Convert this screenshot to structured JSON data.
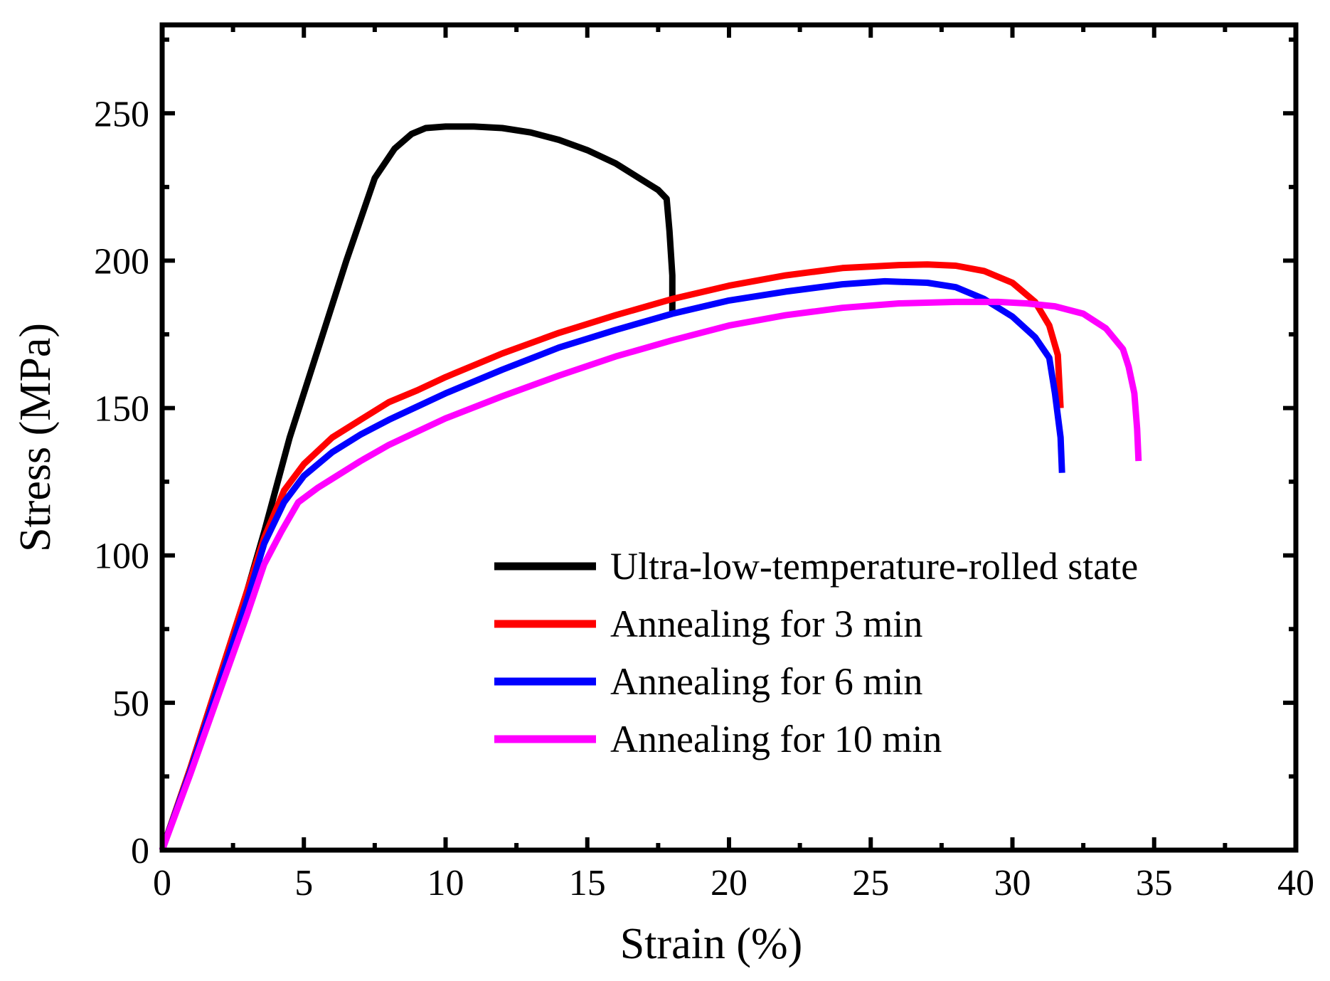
{
  "chart_data": {
    "type": "line",
    "xlabel": "Strain (%)",
    "ylabel": "Stress (MPa)",
    "xlim": [
      0,
      40
    ],
    "ylim": [
      0,
      280
    ],
    "xticks": [
      0,
      5,
      10,
      15,
      20,
      25,
      30,
      35,
      40
    ],
    "yticks": [
      0,
      50,
      100,
      150,
      200,
      250
    ],
    "grid": false,
    "legend_position": "lower-right",
    "series": [
      {
        "name": "Ultra-low-temperature-rolled state",
        "color": "#000000",
        "points": [
          [
            0,
            0
          ],
          [
            1,
            28
          ],
          [
            2,
            58
          ],
          [
            3,
            88
          ],
          [
            3.6,
            108
          ],
          [
            4.5,
            140
          ],
          [
            5.5,
            170
          ],
          [
            6.5,
            200
          ],
          [
            7.5,
            228
          ],
          [
            8.2,
            238
          ],
          [
            8.8,
            243
          ],
          [
            9.3,
            245
          ],
          [
            10,
            245.5
          ],
          [
            11,
            245.5
          ],
          [
            12,
            245
          ],
          [
            13,
            243.5
          ],
          [
            14,
            241
          ],
          [
            15,
            237.5
          ],
          [
            16,
            233
          ],
          [
            17,
            227
          ],
          [
            17.5,
            224
          ],
          [
            17.8,
            221
          ],
          [
            17.9,
            210
          ],
          [
            18,
            195
          ],
          [
            18,
            182
          ]
        ]
      },
      {
        "name": "Annealing for 3 min",
        "color": "#ff0000",
        "points": [
          [
            0,
            0
          ],
          [
            1,
            28
          ],
          [
            2,
            58
          ],
          [
            3,
            88
          ],
          [
            3.6,
            106
          ],
          [
            4.3,
            122
          ],
          [
            5,
            131
          ],
          [
            6,
            140
          ],
          [
            7,
            146
          ],
          [
            8,
            152
          ],
          [
            9,
            156
          ],
          [
            10,
            160.5
          ],
          [
            12,
            168.5
          ],
          [
            14,
            175.5
          ],
          [
            16,
            181.5
          ],
          [
            18,
            187
          ],
          [
            20,
            191.5
          ],
          [
            22,
            195
          ],
          [
            24,
            197.5
          ],
          [
            26,
            198.5
          ],
          [
            27,
            198.7
          ],
          [
            28,
            198.3
          ],
          [
            29,
            196.5
          ],
          [
            30,
            192.5
          ],
          [
            30.8,
            186
          ],
          [
            31.3,
            178
          ],
          [
            31.6,
            168
          ],
          [
            31.7,
            150
          ]
        ]
      },
      {
        "name": "Annealing for 6 min",
        "color": "#0000ff",
        "points": [
          [
            0,
            0
          ],
          [
            1,
            27
          ],
          [
            2,
            56
          ],
          [
            3,
            85
          ],
          [
            3.6,
            104
          ],
          [
            4.3,
            118
          ],
          [
            5,
            127
          ],
          [
            6,
            135
          ],
          [
            7,
            141
          ],
          [
            8,
            146
          ],
          [
            9,
            150.5
          ],
          [
            10,
            155
          ],
          [
            12,
            163
          ],
          [
            14,
            170.5
          ],
          [
            16,
            176.5
          ],
          [
            18,
            182
          ],
          [
            20,
            186.5
          ],
          [
            22,
            189.5
          ],
          [
            24,
            192
          ],
          [
            25.5,
            193
          ],
          [
            27,
            192.5
          ],
          [
            28,
            191
          ],
          [
            29,
            187
          ],
          [
            30,
            181
          ],
          [
            30.8,
            174
          ],
          [
            31.3,
            167
          ],
          [
            31.5,
            155
          ],
          [
            31.7,
            140
          ],
          [
            31.75,
            128
          ]
        ]
      },
      {
        "name": "Annealing for 10 min",
        "color": "#ff00ff",
        "points": [
          [
            0,
            0
          ],
          [
            1,
            26
          ],
          [
            2,
            53
          ],
          [
            3,
            80
          ],
          [
            3.6,
            97
          ],
          [
            4.2,
            108
          ],
          [
            4.8,
            118
          ],
          [
            5.5,
            123
          ],
          [
            6,
            126
          ],
          [
            7,
            132
          ],
          [
            8,
            137.5
          ],
          [
            9,
            142
          ],
          [
            10,
            146.5
          ],
          [
            12,
            154
          ],
          [
            14,
            161
          ],
          [
            16,
            167.5
          ],
          [
            18,
            173
          ],
          [
            20,
            178
          ],
          [
            22,
            181.5
          ],
          [
            24,
            184
          ],
          [
            26,
            185.5
          ],
          [
            28,
            186
          ],
          [
            29.5,
            186
          ],
          [
            30.5,
            185.5
          ],
          [
            31.5,
            184.5
          ],
          [
            32.5,
            182
          ],
          [
            33.3,
            177
          ],
          [
            33.9,
            170
          ],
          [
            34.1,
            164
          ],
          [
            34.3,
            155
          ],
          [
            34.4,
            143
          ],
          [
            34.45,
            132
          ]
        ]
      }
    ]
  }
}
